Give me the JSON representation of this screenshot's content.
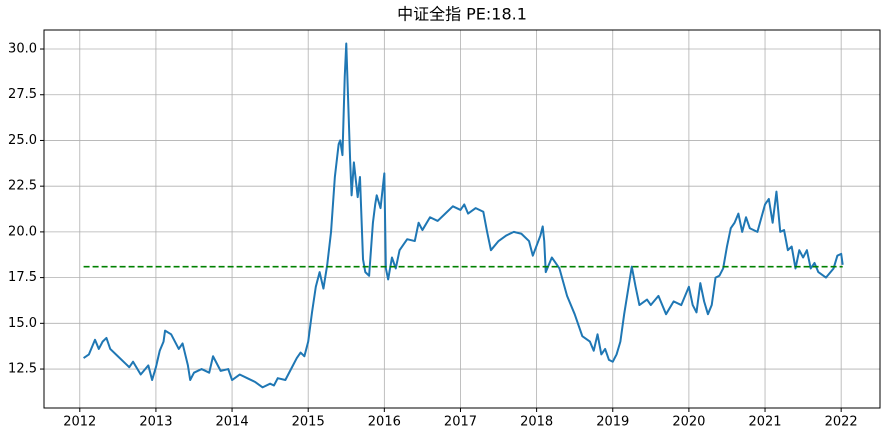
{
  "chart_data": {
    "type": "line",
    "title": "中证全指  PE:18.1",
    "x": [
      2012.05,
      2012.12,
      2012.2,
      2012.25,
      2012.3,
      2012.35,
      2012.4,
      2012.5,
      2012.6,
      2012.65,
      2012.7,
      2012.8,
      2012.9,
      2012.95,
      2013.0,
      2013.05,
      2013.1,
      2013.12,
      2013.2,
      2013.3,
      2013.35,
      2013.42,
      2013.45,
      2013.5,
      2013.6,
      2013.7,
      2013.75,
      2013.85,
      2013.95,
      2014.0,
      2014.1,
      2014.2,
      2014.3,
      2014.4,
      2014.5,
      2014.55,
      2014.6,
      2014.7,
      2014.8,
      2014.85,
      2014.9,
      2014.95,
      2015.0,
      2015.05,
      2015.1,
      2015.15,
      2015.2,
      2015.25,
      2015.3,
      2015.35,
      2015.4,
      2015.42,
      2015.45,
      2015.48,
      2015.5,
      2015.55,
      2015.57,
      2015.6,
      2015.65,
      2015.68,
      2015.72,
      2015.75,
      2015.8,
      2015.85,
      2015.88,
      2015.9,
      2015.95,
      2016.0,
      2016.02,
      2016.05,
      2016.1,
      2016.15,
      2016.2,
      2016.3,
      2016.4,
      2016.45,
      2016.5,
      2016.6,
      2016.7,
      2016.8,
      2016.9,
      2017.0,
      2017.05,
      2017.1,
      2017.2,
      2017.3,
      2017.35,
      2017.4,
      2017.5,
      2017.6,
      2017.7,
      2017.8,
      2017.9,
      2017.95,
      2018.05,
      2018.08,
      2018.1,
      2018.12,
      2018.2,
      2018.3,
      2018.4,
      2018.5,
      2018.6,
      2018.7,
      2018.75,
      2018.8,
      2018.85,
      2018.9,
      2018.95,
      2019.0,
      2019.05,
      2019.1,
      2019.15,
      2019.2,
      2019.25,
      2019.3,
      2019.35,
      2019.45,
      2019.5,
      2019.6,
      2019.7,
      2019.8,
      2019.9,
      2020.0,
      2020.05,
      2020.1,
      2020.15,
      2020.2,
      2020.25,
      2020.3,
      2020.35,
      2020.4,
      2020.45,
      2020.5,
      2020.55,
      2020.6,
      2020.65,
      2020.7,
      2020.75,
      2020.8,
      2020.9,
      2021.0,
      2021.05,
      2021.1,
      2021.15,
      2021.2,
      2021.25,
      2021.3,
      2021.35,
      2021.4,
      2021.45,
      2021.5,
      2021.55,
      2021.6,
      2021.65,
      2021.7,
      2021.8,
      2021.9,
      2021.95,
      2022.0,
      2022.02
    ],
    "series": [
      {
        "color": "#1f77b4",
        "values": [
          13.1,
          13.3,
          14.1,
          13.6,
          14.0,
          14.2,
          13.6,
          13.2,
          12.8,
          12.6,
          12.9,
          12.2,
          12.7,
          11.9,
          12.6,
          13.5,
          14.0,
          14.6,
          14.4,
          13.6,
          13.9,
          12.7,
          11.9,
          12.3,
          12.5,
          12.3,
          13.2,
          12.4,
          12.5,
          11.9,
          12.2,
          12.0,
          11.8,
          11.5,
          11.7,
          11.6,
          12.0,
          11.9,
          12.7,
          13.1,
          13.4,
          13.2,
          14.0,
          15.6,
          17.0,
          17.8,
          16.9,
          18.2,
          20.0,
          23.0,
          24.8,
          25.0,
          24.2,
          28.5,
          30.3,
          24.0,
          22.0,
          23.8,
          21.9,
          23.0,
          18.5,
          17.8,
          17.6,
          20.5,
          21.5,
          22.0,
          21.3,
          23.2,
          18.0,
          17.4,
          18.6,
          18.0,
          19.0,
          19.6,
          19.5,
          20.5,
          20.1,
          20.8,
          20.6,
          21.0,
          21.4,
          21.2,
          21.5,
          21.0,
          21.3,
          21.1,
          20.0,
          19.0,
          19.5,
          19.8,
          20.0,
          19.9,
          19.5,
          18.7,
          19.8,
          20.3,
          19.5,
          17.8,
          18.6,
          18.0,
          16.5,
          15.5,
          14.3,
          14.0,
          13.5,
          14.4,
          13.3,
          13.6,
          13.0,
          12.9,
          13.3,
          14.0,
          15.5,
          16.8,
          18.1,
          17.0,
          16.0,
          16.3,
          16.0,
          16.5,
          15.5,
          16.2,
          16.0,
          17.0,
          16.0,
          15.6,
          17.2,
          16.2,
          15.5,
          16.0,
          17.5,
          17.6,
          18.0,
          19.2,
          20.2,
          20.5,
          21.0,
          20.0,
          20.8,
          20.2,
          20.0,
          21.5,
          21.8,
          20.5,
          22.2,
          20.0,
          20.1,
          19.0,
          19.2,
          18.0,
          19.0,
          18.6,
          19.0,
          18.0,
          18.3,
          17.8,
          17.5,
          18.0,
          18.7,
          18.8,
          18.2
        ]
      }
    ],
    "reference_line": {
      "value": 18.1,
      "color": "green",
      "style": "dashed"
    },
    "xlim": [
      2011.53,
      2022.51
    ],
    "xticks": [
      2012,
      2013,
      2014,
      2015,
      2016,
      2017,
      2018,
      2019,
      2020,
      2021,
      2022
    ],
    "ylim": [
      10.37,
      31.04
    ],
    "yticks": [
      12.5,
      {
        "value": 15,
        "label": "15.0"
      },
      17.5,
      {
        "value": 20,
        "label": "20.0"
      },
      22.5,
      {
        "value": 25,
        "label": "25.0"
      },
      27.5,
      {
        "value": 30,
        "label": "30.0"
      }
    ],
    "grid": true
  }
}
